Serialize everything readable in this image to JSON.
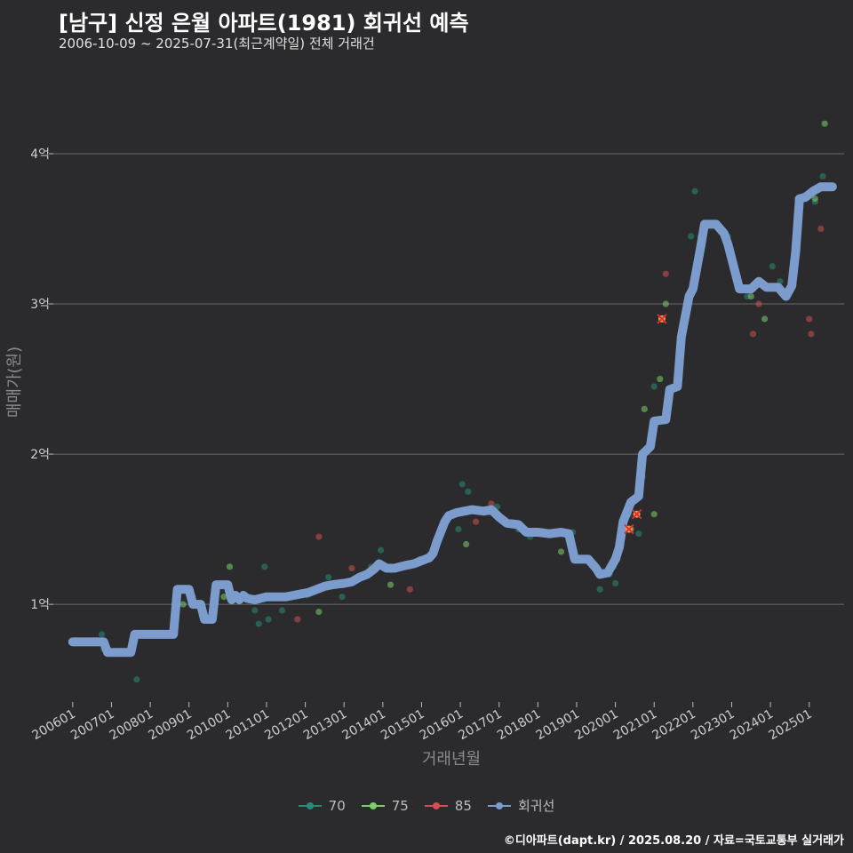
{
  "title": "[남구] 신정 은월 아파트(1981) 회귀선 예측",
  "subtitle": "2006-10-09 ~ 2025-07-31(최근계약일) 전체 거래건",
  "caption": "©디아파트(dapt.kr) / 2025.08.20 / 자료=국토교통부 실거래가",
  "chart_data": {
    "type": "scatter",
    "xlabel": "거래년월",
    "ylabel": "매매가(원)",
    "x_ticks": [
      "200601",
      "200701",
      "200801",
      "200901",
      "201001",
      "201101",
      "201201",
      "201301",
      "201401",
      "201501",
      "201601",
      "201701",
      "201801",
      "201901",
      "202001",
      "202101",
      "202201",
      "202301",
      "202401",
      "202501"
    ],
    "y_ticks": [
      {
        "value": 1.0,
        "label": "1억"
      },
      {
        "value": 2.0,
        "label": "2억"
      },
      {
        "value": 3.0,
        "label": "3억"
      },
      {
        "value": 4.0,
        "label": "4억"
      }
    ],
    "xlim": [
      2005.5,
      2025.9
    ],
    "ylim": [
      0.35,
      4.55
    ],
    "grid": true,
    "legend_position": "bottom",
    "series": [
      {
        "name": "70",
        "color": "#2a8a7a",
        "points": [
          [
            2006.75,
            0.8
          ],
          [
            2006.8,
            0.7
          ],
          [
            2007.65,
            0.5
          ],
          [
            2009.1,
            1.05
          ],
          [
            2010.7,
            0.96
          ],
          [
            2010.8,
            0.87
          ],
          [
            2010.95,
            1.25
          ],
          [
            2011.05,
            0.9
          ],
          [
            2011.4,
            0.96
          ],
          [
            2012.05,
            1.06
          ],
          [
            2012.6,
            1.18
          ],
          [
            2012.95,
            1.05
          ],
          [
            2013.7,
            1.25
          ],
          [
            2013.95,
            1.36
          ],
          [
            2014.6,
            1.25
          ],
          [
            2014.95,
            1.3
          ],
          [
            2015.95,
            1.5
          ],
          [
            2016.05,
            1.8
          ],
          [
            2016.2,
            1.75
          ],
          [
            2016.95,
            1.65
          ],
          [
            2017.5,
            1.5
          ],
          [
            2017.8,
            1.45
          ],
          [
            2018.9,
            1.48
          ],
          [
            2019.6,
            1.1
          ],
          [
            2019.85,
            1.2
          ],
          [
            2019.95,
            1.25
          ],
          [
            2020.05,
            1.3
          ],
          [
            2020.0,
            1.14
          ],
          [
            2020.35,
            1.6
          ],
          [
            2020.6,
            1.47
          ],
          [
            2020.7,
            1.85
          ],
          [
            2021.0,
            2.45
          ],
          [
            2021.95,
            3.45
          ],
          [
            2022.05,
            3.75
          ],
          [
            2022.2,
            3.45
          ],
          [
            2022.9,
            3.45
          ],
          [
            2023.4,
            3.05
          ],
          [
            2024.05,
            3.25
          ],
          [
            2024.25,
            3.15
          ],
          [
            2024.7,
            3.7
          ],
          [
            2025.15,
            3.68
          ],
          [
            2025.35,
            3.85
          ]
        ]
      },
      {
        "name": "75",
        "color": "#7ccf6a",
        "points": [
          [
            2008.85,
            1.0
          ],
          [
            2009.9,
            1.05
          ],
          [
            2010.05,
            1.25
          ],
          [
            2012.35,
            0.95
          ],
          [
            2014.2,
            1.13
          ],
          [
            2015.2,
            1.3
          ],
          [
            2016.15,
            1.4
          ],
          [
            2018.6,
            1.35
          ],
          [
            2020.4,
            1.5
          ],
          [
            2020.6,
            1.8
          ],
          [
            2020.75,
            2.3
          ],
          [
            2021.0,
            1.6
          ],
          [
            2021.15,
            2.5
          ],
          [
            2021.3,
            3.0
          ],
          [
            2023.5,
            3.05
          ],
          [
            2023.85,
            2.9
          ],
          [
            2025.15,
            3.7
          ],
          [
            2025.4,
            4.2
          ]
        ]
      },
      {
        "name": "85",
        "color": "#d05050",
        "points": [
          [
            2009.5,
            0.9
          ],
          [
            2011.8,
            0.9
          ],
          [
            2012.35,
            1.45
          ],
          [
            2013.2,
            1.24
          ],
          [
            2014.7,
            1.1
          ],
          [
            2016.4,
            1.55
          ],
          [
            2016.8,
            1.67
          ],
          [
            2020.35,
            1.5
          ],
          [
            2020.55,
            1.6
          ],
          [
            2021.2,
            2.9
          ],
          [
            2021.3,
            3.2
          ],
          [
            2023.55,
            2.8
          ],
          [
            2023.7,
            3.0
          ],
          [
            2025.0,
            2.9
          ],
          [
            2025.05,
            2.8
          ],
          [
            2025.3,
            3.5
          ]
        ]
      }
    ],
    "highlights": [
      [
        2020.35,
        1.5
      ],
      [
        2020.55,
        1.6
      ],
      [
        2021.2,
        2.9
      ]
    ],
    "regression": {
      "name": "회귀선",
      "color": "#7b9ccc",
      "points": [
        [
          2006.0,
          0.75
        ],
        [
          2006.8,
          0.75
        ],
        [
          2006.9,
          0.68
        ],
        [
          2007.5,
          0.68
        ],
        [
          2007.6,
          0.8
        ],
        [
          2008.6,
          0.8
        ],
        [
          2008.7,
          1.1
        ],
        [
          2009.0,
          1.1
        ],
        [
          2009.1,
          1.0
        ],
        [
          2009.3,
          1.0
        ],
        [
          2009.4,
          0.9
        ],
        [
          2009.6,
          0.9
        ],
        [
          2009.7,
          1.13
        ],
        [
          2010.0,
          1.13
        ],
        [
          2010.1,
          1.03
        ],
        [
          2010.2,
          1.06
        ],
        [
          2010.3,
          1.03
        ],
        [
          2010.4,
          1.06
        ],
        [
          2010.5,
          1.04
        ],
        [
          2010.7,
          1.03
        ],
        [
          2011.0,
          1.05
        ],
        [
          2011.5,
          1.05
        ],
        [
          2011.7,
          1.06
        ],
        [
          2011.9,
          1.07
        ],
        [
          2012.1,
          1.08
        ],
        [
          2012.3,
          1.1
        ],
        [
          2012.5,
          1.12
        ],
        [
          2012.7,
          1.13
        ],
        [
          2013.0,
          1.14
        ],
        [
          2013.2,
          1.15
        ],
        [
          2013.4,
          1.18
        ],
        [
          2013.6,
          1.2
        ],
        [
          2013.8,
          1.24
        ],
        [
          2013.9,
          1.27
        ],
        [
          2014.1,
          1.24
        ],
        [
          2014.3,
          1.24
        ],
        [
          2014.6,
          1.26
        ],
        [
          2014.8,
          1.27
        ],
        [
          2015.0,
          1.29
        ],
        [
          2015.2,
          1.31
        ],
        [
          2015.3,
          1.34
        ],
        [
          2015.4,
          1.42
        ],
        [
          2015.6,
          1.55
        ],
        [
          2015.7,
          1.59
        ],
        [
          2015.9,
          1.61
        ],
        [
          2016.1,
          1.62
        ],
        [
          2016.3,
          1.63
        ],
        [
          2016.6,
          1.62
        ],
        [
          2016.8,
          1.63
        ],
        [
          2017.0,
          1.58
        ],
        [
          2017.2,
          1.54
        ],
        [
          2017.5,
          1.53
        ],
        [
          2017.7,
          1.48
        ],
        [
          2018.0,
          1.48
        ],
        [
          2018.3,
          1.47
        ],
        [
          2018.6,
          1.48
        ],
        [
          2018.8,
          1.47
        ],
        [
          2018.95,
          1.3
        ],
        [
          2019.3,
          1.3
        ],
        [
          2019.5,
          1.24
        ],
        [
          2019.6,
          1.2
        ],
        [
          2019.8,
          1.21
        ],
        [
          2020.0,
          1.3
        ],
        [
          2020.1,
          1.38
        ],
        [
          2020.2,
          1.55
        ],
        [
          2020.4,
          1.68
        ],
        [
          2020.6,
          1.72
        ],
        [
          2020.7,
          2.0
        ],
        [
          2020.9,
          2.05
        ],
        [
          2021.0,
          2.22
        ],
        [
          2021.3,
          2.23
        ],
        [
          2021.4,
          2.43
        ],
        [
          2021.6,
          2.45
        ],
        [
          2021.7,
          2.78
        ],
        [
          2021.9,
          3.05
        ],
        [
          2022.0,
          3.1
        ],
        [
          2022.2,
          3.38
        ],
        [
          2022.3,
          3.53
        ],
        [
          2022.6,
          3.53
        ],
        [
          2022.8,
          3.47
        ],
        [
          2022.9,
          3.4
        ],
        [
          2023.0,
          3.3
        ],
        [
          2023.2,
          3.1
        ],
        [
          2023.5,
          3.1
        ],
        [
          2023.7,
          3.15
        ],
        [
          2023.9,
          3.11
        ],
        [
          2024.2,
          3.11
        ],
        [
          2024.4,
          3.05
        ],
        [
          2024.55,
          3.12
        ],
        [
          2024.65,
          3.35
        ],
        [
          2024.75,
          3.7
        ],
        [
          2024.9,
          3.71
        ],
        [
          2025.1,
          3.75
        ],
        [
          2025.3,
          3.78
        ],
        [
          2025.6,
          3.78
        ]
      ]
    }
  }
}
